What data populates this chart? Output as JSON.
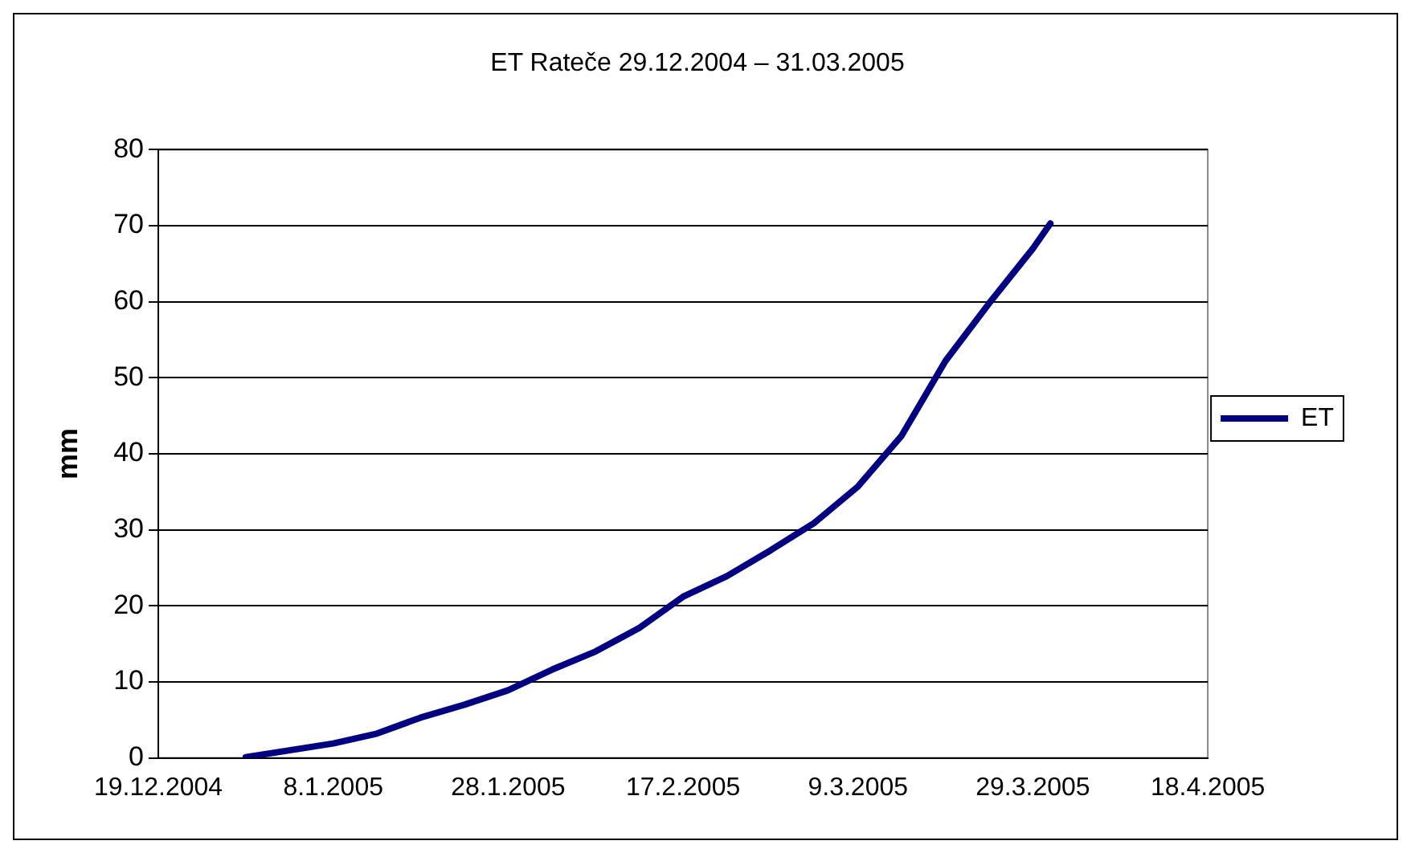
{
  "chart_data": {
    "type": "line",
    "title": "ET Rateče 29.12.2004 – 31.03.2005",
    "ylabel": "mm",
    "x": [
      "2004-12-29",
      "2005-01-08",
      "2005-01-13",
      "2005-01-18",
      "2005-01-23",
      "2005-01-28",
      "2005-02-02",
      "2005-02-07",
      "2005-02-12",
      "2005-02-17",
      "2005-02-22",
      "2005-02-27",
      "2005-03-04",
      "2005-03-09",
      "2005-03-14",
      "2005-03-19",
      "2005-03-24",
      "2005-03-29",
      "2005-03-31"
    ],
    "series": [
      {
        "name": "ET",
        "color": "#000080",
        "values": [
          0.1,
          1.9,
          3.2,
          5.3,
          7.0,
          8.9,
          11.6,
          14.0,
          17.1,
          21.2,
          23.9,
          27.3,
          30.9,
          35.7,
          42.4,
          52.2,
          59.8,
          67.0,
          70.3
        ]
      }
    ],
    "xlim": [
      "2004-12-19",
      "2005-04-18"
    ],
    "xticks": [
      {
        "value": "2004-12-19",
        "label": "19.12.2004"
      },
      {
        "value": "2005-01-08",
        "label": "8.1.2005"
      },
      {
        "value": "2005-01-28",
        "label": "28.1.2005"
      },
      {
        "value": "2005-02-17",
        "label": "17.2.2005"
      },
      {
        "value": "2005-03-09",
        "label": "9.3.2005"
      },
      {
        "value": "2005-03-29",
        "label": "29.3.2005"
      },
      {
        "value": "2005-04-18",
        "label": "18.4.2005"
      }
    ],
    "ylim": [
      0,
      80
    ],
    "yticks": [
      0,
      10,
      20,
      30,
      40,
      50,
      60,
      70,
      80
    ],
    "grid": "y",
    "legend": "right",
    "marker": "none",
    "line_style": "solid"
  }
}
